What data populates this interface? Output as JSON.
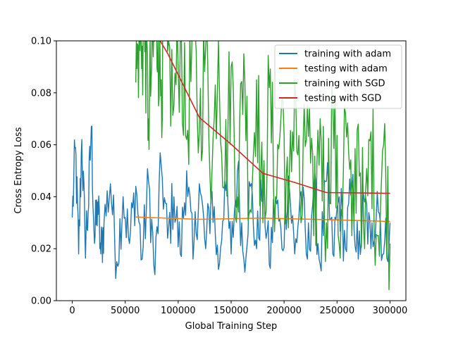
{
  "chart_data": {
    "type": "line",
    "title": "",
    "xlabel": "Global Training Step",
    "ylabel": "Cross Entropy Loss",
    "xlim": [
      -15000,
      315000
    ],
    "ylim": [
      0.0,
      0.1
    ],
    "x_ticks": [
      0,
      50000,
      100000,
      150000,
      200000,
      250000,
      300000
    ],
    "x_tick_labels": [
      "0",
      "50000",
      "100000",
      "150000",
      "200000",
      "250000",
      "300000"
    ],
    "y_ticks": [
      0.0,
      0.02,
      0.04,
      0.06,
      0.08,
      0.1
    ],
    "y_tick_labels": [
      "0.00",
      "0.02",
      "0.04",
      "0.06",
      "0.08",
      "0.10"
    ],
    "grid": false,
    "legend": {
      "position": "top-right"
    },
    "series": [
      {
        "name": "training with adam",
        "color": "#1f77b4",
        "style": "noisy",
        "x": [
          0,
          3000,
          6000,
          9000,
          12000,
          15000,
          18000,
          21000,
          24000,
          27000,
          30000,
          36000,
          42000,
          48000,
          54000,
          60000,
          66000,
          72000,
          78000,
          84000,
          90000,
          96000,
          102000,
          108000,
          114000,
          120000,
          126000,
          132000,
          138000,
          144000,
          150000,
          156000,
          162000,
          168000,
          174000,
          180000,
          186000,
          192000,
          198000,
          204000,
          210000,
          216000,
          222000,
          228000,
          234000,
          240000,
          246000,
          252000,
          258000,
          264000,
          270000,
          276000,
          282000,
          288000,
          294000,
          300000
        ],
        "y": [
          0.032,
          0.059,
          0.018,
          0.062,
          0.024,
          0.034,
          0.067,
          0.022,
          0.038,
          0.018,
          0.03,
          0.045,
          0.015,
          0.04,
          0.022,
          0.044,
          0.016,
          0.046,
          0.01,
          0.052,
          0.024,
          0.04,
          0.018,
          0.05,
          0.016,
          0.045,
          0.02,
          0.042,
          0.012,
          0.046,
          0.018,
          0.05,
          0.016,
          0.044,
          0.02,
          0.046,
          0.014,
          0.04,
          0.02,
          0.048,
          0.018,
          0.042,
          0.016,
          0.044,
          0.014,
          0.046,
          0.018,
          0.04,
          0.02,
          0.044,
          0.016,
          0.038,
          0.02,
          0.042,
          0.018,
          0.03
        ]
      },
      {
        "name": "testing with adam",
        "color": "#ff7f0e",
        "style": "smooth",
        "x": [
          60000,
          120000,
          180000,
          240000,
          300000
        ],
        "y": [
          0.0322,
          0.0313,
          0.0318,
          0.0312,
          0.0305
        ]
      },
      {
        "name": "training with SGD",
        "color": "#2ca02c",
        "style": "noisy",
        "x": [
          60000,
          63000,
          66000,
          69000,
          72000,
          75000,
          78000,
          81000,
          84000,
          87000,
          90000,
          96000,
          102000,
          108000,
          114000,
          120000,
          126000,
          132000,
          138000,
          144000,
          150000,
          156000,
          162000,
          168000,
          174000,
          180000,
          186000,
          192000,
          198000,
          204000,
          210000,
          216000,
          222000,
          228000,
          234000,
          240000,
          246000,
          252000,
          258000,
          264000,
          270000,
          276000,
          282000,
          288000,
          294000,
          300000
        ],
        "y": [
          0.084,
          0.1,
          0.098,
          0.1,
          0.07,
          0.09,
          0.1,
          0.1,
          0.085,
          0.1,
          0.096,
          0.075,
          0.1,
          0.062,
          0.1,
          0.065,
          0.098,
          0.05,
          0.1,
          0.045,
          0.09,
          0.04,
          0.095,
          0.035,
          0.085,
          0.03,
          0.082,
          0.04,
          0.078,
          0.028,
          0.085,
          0.03,
          0.075,
          0.025,
          0.07,
          0.03,
          0.078,
          0.022,
          0.072,
          0.025,
          0.068,
          0.02,
          0.065,
          0.025,
          0.06,
          0.022
        ]
      },
      {
        "name": "testing with SGD",
        "color": "#d62728",
        "style": "smooth",
        "x": [
          83000,
          90000,
          120000,
          150000,
          180000,
          210000,
          240000,
          270000,
          300000
        ],
        "y": [
          0.1,
          0.0952,
          0.0705,
          0.0602,
          0.049,
          0.0455,
          0.0416,
          0.0415,
          0.0413
        ]
      }
    ]
  }
}
